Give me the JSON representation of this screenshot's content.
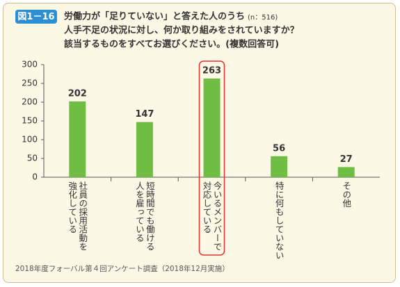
{
  "chart_data": {
    "type": "bar",
    "badge": "図1－16",
    "title": [
      "労働力が「足りていない」と答えた人のうち",
      "人手不足の状況に対し、何か取り組みをされていますか？",
      "該当するものをすべてお選びください。(複数回答可)"
    ],
    "note": "(n：516)",
    "categories": [
      [
        "社員の採用活動を",
        "強化している"
      ],
      [
        "短時間でも働ける",
        "人を雇っている"
      ],
      [
        "今いるメンバーで",
        "対応している"
      ],
      [
        "特に何もしていない"
      ],
      [
        "その他"
      ]
    ],
    "values": [
      202,
      147,
      263,
      56,
      27
    ],
    "color": "#6fbe44",
    "highlight": 2,
    "ylim": [
      0,
      300
    ],
    "yticks": [
      0,
      50,
      100,
      150,
      200,
      250,
      300
    ],
    "source": "2018年度フォーバル第４回アンケート調査（2018年12月実施）"
  }
}
